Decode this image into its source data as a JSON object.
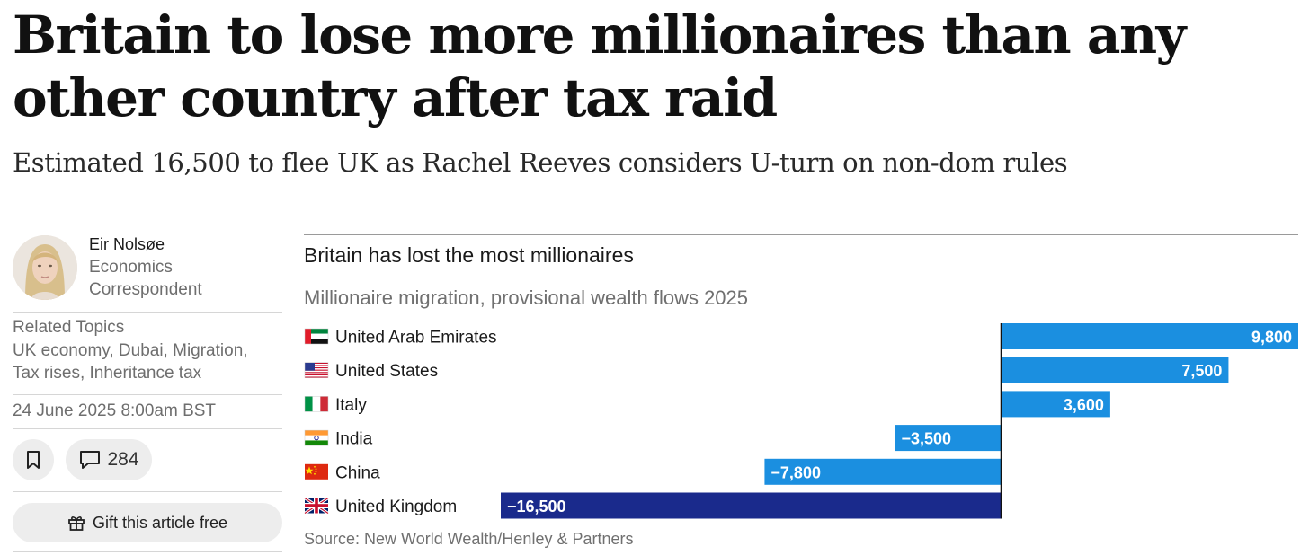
{
  "article": {
    "headline": "Britain to lose more millionaires than any other country after tax raid",
    "standfirst": "Estimated 16,500 to flee UK as Rachel Reeves considers U-turn on non-dom rules"
  },
  "author": {
    "name": "Eir Nolsøe",
    "role": "Economics Correspondent"
  },
  "related": {
    "title": "Related Topics",
    "topics": "UK economy, Dubai, Migration, Tax rises, Inheritance tax"
  },
  "meta": {
    "date": "24 June 2025 8:00am BST",
    "comment_count": "284",
    "gift_label": "Gift this article free"
  },
  "chart_data": {
    "type": "bar",
    "orientation": "horizontal",
    "title": "Britain has lost the most millionaires",
    "subtitle": "Millionaire migration, provisional wealth flows 2025",
    "source": "Source: New World Wealth/Henley & Partners",
    "categories": [
      "United Arab Emirates",
      "United States",
      "Italy",
      "India",
      "China",
      "United Kingdom"
    ],
    "values": [
      9800,
      7500,
      3600,
      -3500,
      -7800,
      -16500
    ],
    "value_labels": [
      "9,800",
      "7,500",
      "3,600",
      "−3,500",
      "−7,800",
      "−16,500"
    ],
    "flags": [
      "uae-flag-icon",
      "us-flag-icon",
      "italy-flag-icon",
      "india-flag-icon",
      "china-flag-icon",
      "uk-flag-icon"
    ],
    "xlim": [
      -16500,
      9800
    ],
    "colors": {
      "default": "#1b8fe0",
      "highlight": "#1a2a8c"
    },
    "highlight_category": "United Kingdom"
  }
}
